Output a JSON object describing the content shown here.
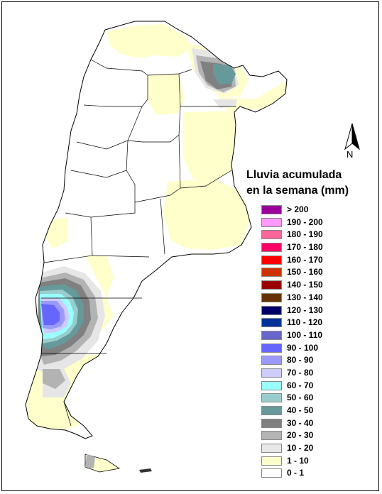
{
  "legend": {
    "title_line1": "Lluvia acumulada",
    "title_line2": "en la semana (mm)",
    "items": [
      {
        "label": "> 200",
        "color": "#990099"
      },
      {
        "label": "190 - 200",
        "color": "#ff99ff"
      },
      {
        "label": "180 - 190",
        "color": "#ff6699"
      },
      {
        "label": "170 - 180",
        "color": "#ff0066"
      },
      {
        "label": "160 - 170",
        "color": "#ff0000"
      },
      {
        "label": "150 - 160",
        "color": "#cc3300"
      },
      {
        "label": "140 - 150",
        "color": "#990000"
      },
      {
        "label": "130 - 140",
        "color": "#663300"
      },
      {
        "label": "120 - 130",
        "color": "#000066"
      },
      {
        "label": "110 - 120",
        "color": "#003399"
      },
      {
        "label": "100 - 110",
        "color": "#6666cc"
      },
      {
        "label": "90 - 100",
        "color": "#6666ff"
      },
      {
        "label": "80 - 90",
        "color": "#9999ff"
      },
      {
        "label": "70 - 80",
        "color": "#ccccff"
      },
      {
        "label": "60 - 70",
        "color": "#99ffff"
      },
      {
        "label": "50 - 60",
        "color": "#99cccc"
      },
      {
        "label": "40 - 50",
        "color": "#669999"
      },
      {
        "label": "30 - 40",
        "color": "#808080"
      },
      {
        "label": "20 - 30",
        "color": "#b3b3b3"
      },
      {
        "label": "10 - 20",
        "color": "#e6e6e6"
      },
      {
        "label": "1 - 10",
        "color": "#ffffcc"
      },
      {
        "label": "0 - 1",
        "color": "#ffffff"
      }
    ]
  },
  "north_arrow": {
    "label": "N"
  }
}
